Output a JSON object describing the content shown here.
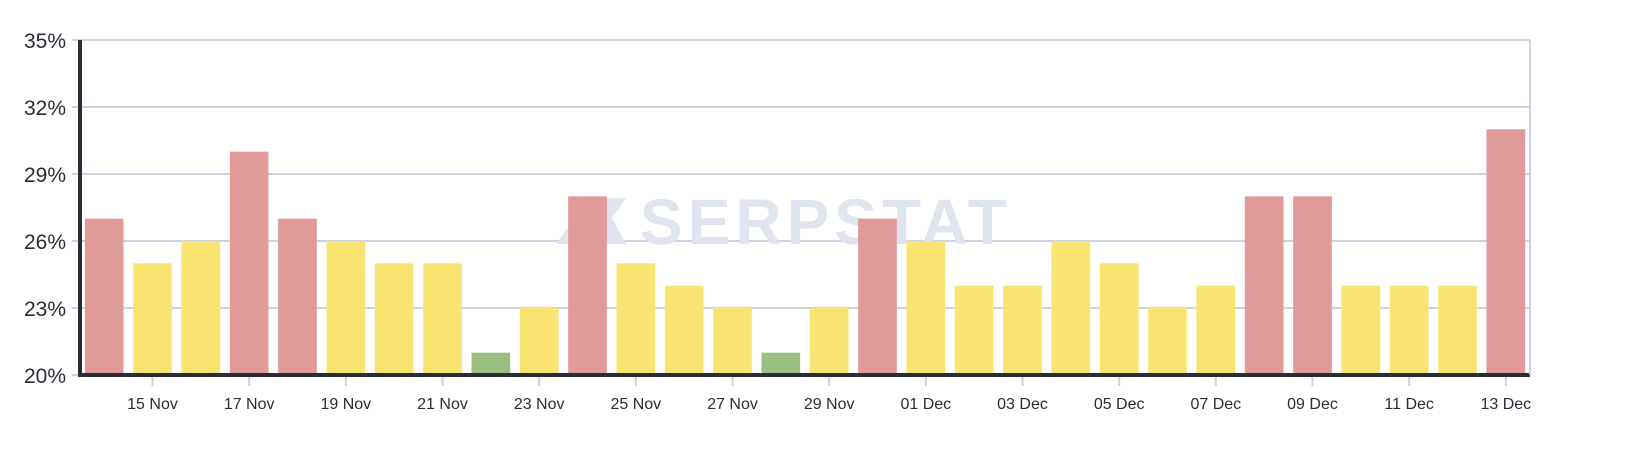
{
  "chart_data": {
    "type": "bar",
    "title": "",
    "xlabel": "",
    "ylabel": "",
    "ylim": [
      20,
      35
    ],
    "yticks": [
      "20%",
      "23%",
      "26%",
      "29%",
      "32%",
      "35%"
    ],
    "grid": true,
    "legend": null,
    "watermark": "SERPSTAT",
    "categories": [
      "14 Nov",
      "15 Nov",
      "16 Nov",
      "17 Nov",
      "18 Nov",
      "19 Nov",
      "20 Nov",
      "21 Nov",
      "22 Nov",
      "23 Nov",
      "24 Nov",
      "25 Nov",
      "26 Nov",
      "27 Nov",
      "28 Nov",
      "29 Nov",
      "30 Nov",
      "01 Dec",
      "02 Dec",
      "03 Dec",
      "04 Dec",
      "05 Dec",
      "06 Dec",
      "07 Dec",
      "08 Dec",
      "09 Dec",
      "10 Dec",
      "11 Dec",
      "12 Dec",
      "13 Dec"
    ],
    "xtick_labels": [
      "15 Nov",
      "17 Nov",
      "19 Nov",
      "21 Nov",
      "23 Nov",
      "25 Nov",
      "27 Nov",
      "29 Nov",
      "01 Dec",
      "03 Dec",
      "05 Dec",
      "07 Dec",
      "09 Dec",
      "11 Dec",
      "13 Dec"
    ],
    "values": [
      27,
      25,
      26,
      30,
      27,
      26,
      25,
      25,
      21,
      23,
      28,
      25,
      24,
      23,
      21,
      23,
      27,
      26,
      24,
      24,
      26,
      25,
      23,
      24,
      28,
      28,
      24,
      24,
      24,
      31
    ],
    "bar_colors": [
      "red",
      "yellow",
      "yellow",
      "red",
      "red",
      "yellow",
      "yellow",
      "yellow",
      "green",
      "yellow",
      "red",
      "yellow",
      "yellow",
      "yellow",
      "green",
      "yellow",
      "red",
      "yellow",
      "yellow",
      "yellow",
      "yellow",
      "yellow",
      "yellow",
      "yellow",
      "red",
      "red",
      "yellow",
      "yellow",
      "yellow",
      "red"
    ],
    "palette": {
      "red": "#e09a99",
      "yellow": "#f9e472",
      "green": "#9bbf80",
      "grid": "#cbd3e1",
      "axis": "#2a2d36"
    }
  }
}
